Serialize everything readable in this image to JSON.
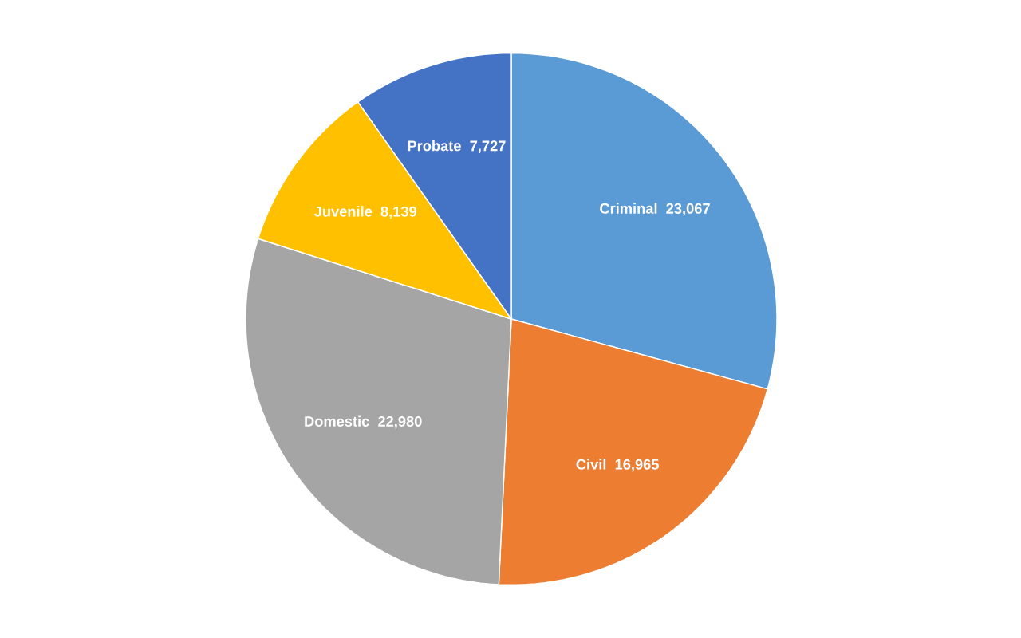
{
  "chart_data": {
    "type": "pie",
    "categories": [
      "Criminal",
      "Civil",
      "Domestic",
      "Juvenile",
      "Probate"
    ],
    "values": [
      23067,
      16965,
      22980,
      8139,
      7727
    ],
    "colors": [
      "#5b9bd5",
      "#ed7d31",
      "#a5a5a5",
      "#ffc000",
      "#4472c4"
    ],
    "value_labels": [
      "23,067",
      "16,965",
      "22,980",
      "8,139",
      "7,727"
    ]
  }
}
